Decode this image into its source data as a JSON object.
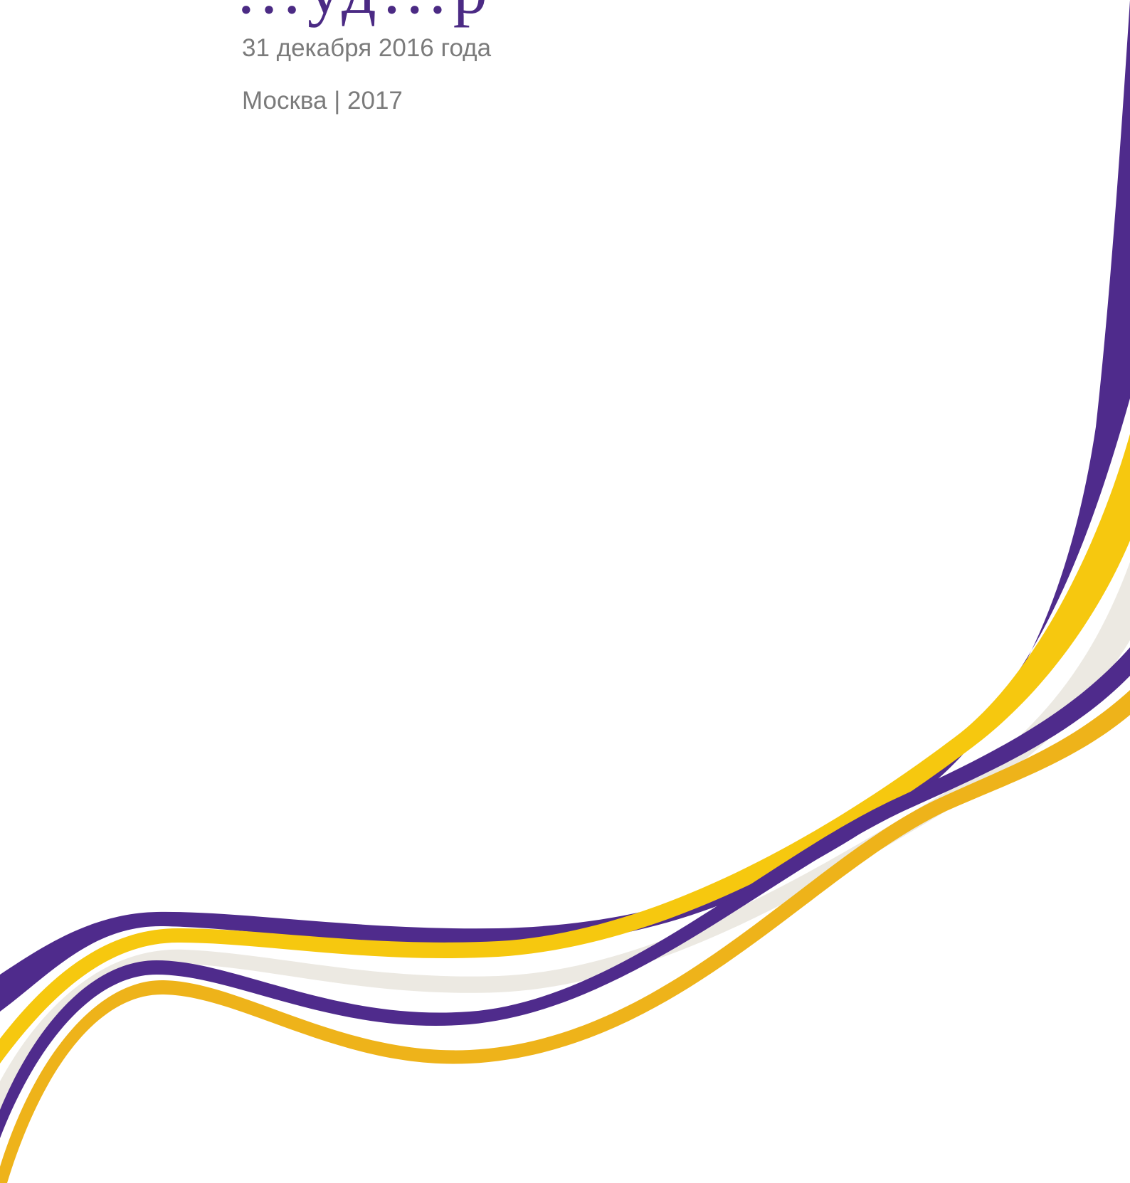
{
  "cover": {
    "title_fragment": "…уд…р",
    "date": "31 декабря 2016 года",
    "place_year": "Москва | 2017"
  },
  "colors": {
    "title": "#4b2a84",
    "meta_text": "#7b7b7b",
    "ribbon_purple": "#4f2b8c",
    "ribbon_yellow": "#f6c80f",
    "ribbon_cream": "#ece9e2",
    "ribbon_orange": "#eeb31a",
    "background": "#ffffff"
  }
}
